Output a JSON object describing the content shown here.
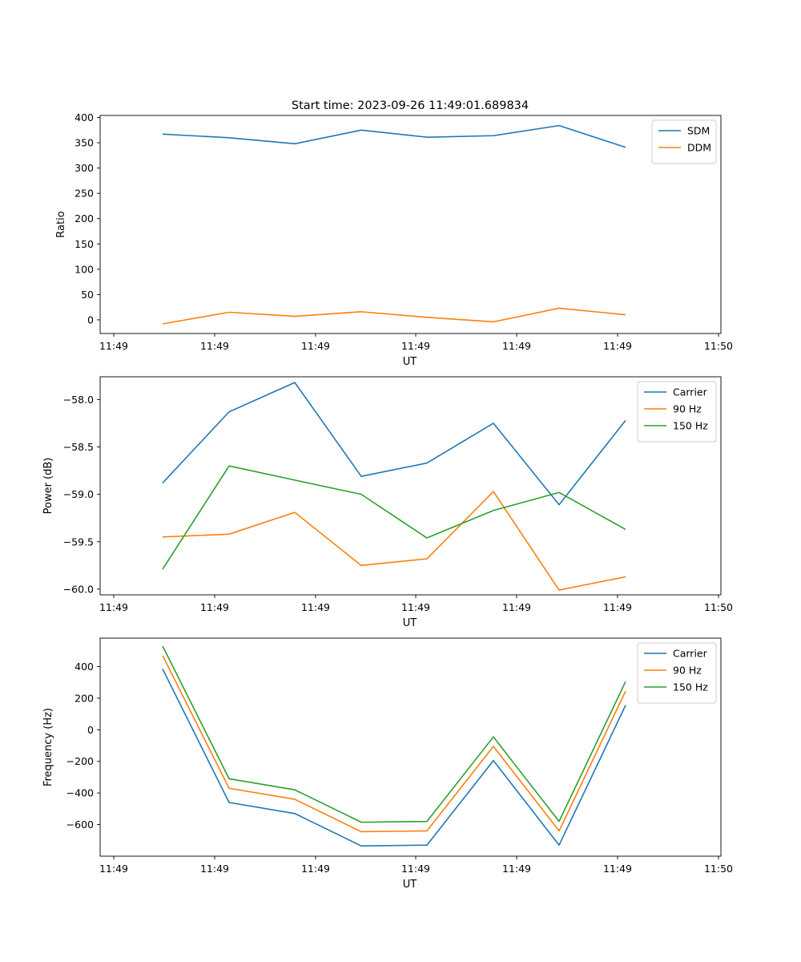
{
  "figure": {
    "title": "Start time: 2023-09-26 11:49:01.689834"
  },
  "colors": {
    "blue": "#1f77b4",
    "orange": "#ff7f0e",
    "green": "#2ca02c"
  },
  "chart_data": [
    {
      "type": "line",
      "title": "Start time: 2023-09-26 11:49:01.689834",
      "xlabel": "UT",
      "ylabel": "Ratio",
      "x_tick_labels": [
        "11:49",
        "11:49",
        "11:49",
        "11:49",
        "11:49",
        "11:49",
        "11:50"
      ],
      "y_ticks": [
        0,
        50,
        100,
        150,
        200,
        250,
        300,
        350,
        400
      ],
      "ylim": [
        -27,
        404
      ],
      "legend": "top-right",
      "series": [
        {
          "name": "SDM",
          "color": "#1f77b4",
          "values": [
            367,
            360,
            348,
            375,
            361,
            364,
            384,
            341
          ]
        },
        {
          "name": "DDM",
          "color": "#ff7f0e",
          "values": [
            -8,
            15,
            7,
            16,
            5,
            -4,
            23,
            10
          ]
        }
      ]
    },
    {
      "type": "line",
      "title": "",
      "xlabel": "UT",
      "ylabel": "Power (dB)",
      "x_tick_labels": [
        "11:49",
        "11:49",
        "11:49",
        "11:49",
        "11:49",
        "11:49",
        "11:50"
      ],
      "y_ticks": [
        -60.0,
        -59.5,
        -59.0,
        -58.5,
        -58.0
      ],
      "y_tick_labels": [
        "−60.0",
        "−59.5",
        "−59.0",
        "−58.5",
        "−58.0"
      ],
      "ylim": [
        -60.06,
        -57.76
      ],
      "legend": "top-right",
      "series": [
        {
          "name": "Carrier",
          "color": "#1f77b4",
          "values": [
            -58.88,
            -58.13,
            -57.82,
            -58.81,
            -58.67,
            -58.25,
            -59.11,
            -58.22
          ]
        },
        {
          "name": "90 Hz",
          "color": "#ff7f0e",
          "values": [
            -59.45,
            -59.42,
            -59.19,
            -59.75,
            -59.68,
            -58.97,
            -60.01,
            -59.87
          ]
        },
        {
          "name": "150 Hz",
          "color": "#2ca02c",
          "values": [
            -59.79,
            -58.7,
            -58.85,
            -59.0,
            -59.46,
            -59.17,
            -58.98,
            -59.37
          ]
        }
      ]
    },
    {
      "type": "line",
      "title": "",
      "xlabel": "UT",
      "ylabel": "Frequency (Hz)",
      "x_tick_labels": [
        "11:49",
        "11:49",
        "11:49",
        "11:49",
        "11:49",
        "11:49",
        "11:50"
      ],
      "y_ticks": [
        -600,
        -400,
        -200,
        0,
        200,
        400
      ],
      "y_tick_labels": [
        "−600",
        "−400",
        "−200",
        "0",
        "200",
        "400"
      ],
      "ylim": [
        -800,
        580
      ],
      "legend": "top-right",
      "series": [
        {
          "name": "Carrier",
          "color": "#1f77b4",
          "values": [
            385,
            -460,
            -530,
            -735,
            -730,
            -195,
            -730,
            155
          ]
        },
        {
          "name": "90 Hz",
          "color": "#ff7f0e",
          "values": [
            470,
            -370,
            -440,
            -645,
            -640,
            -105,
            -640,
            245
          ]
        },
        {
          "name": "150 Hz",
          "color": "#2ca02c",
          "values": [
            530,
            -310,
            -380,
            -585,
            -580,
            -45,
            -580,
            305
          ]
        }
      ]
    }
  ]
}
